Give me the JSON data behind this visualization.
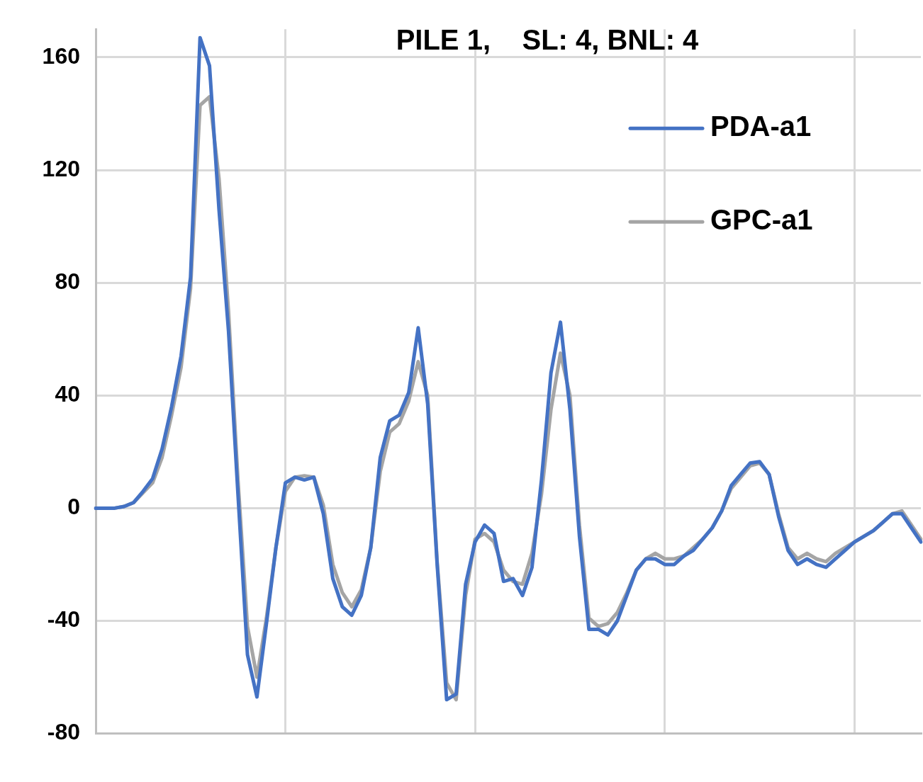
{
  "chart_data": {
    "type": "line",
    "title": "PILE 1,    SL: 4, BNL: 4",
    "categories": [
      null,
      null,
      null,
      null,
      null,
      null,
      null,
      null,
      null,
      null,
      null,
      null,
      null,
      null,
      null,
      null,
      null,
      null,
      null,
      null,
      null,
      null,
      null,
      null,
      null,
      null,
      null,
      null,
      null,
      null,
      null,
      null,
      null,
      null,
      null,
      null,
      null,
      null,
      null,
      null,
      null,
      null,
      null,
      null,
      null,
      null,
      null,
      null,
      null,
      null,
      null,
      null,
      null,
      null,
      null,
      null,
      null,
      null,
      null,
      null,
      null,
      null,
      null,
      null,
      null,
      null,
      null,
      null,
      null,
      null,
      null,
      null,
      null,
      null,
      null,
      null,
      null,
      null,
      null,
      null,
      null,
      null,
      null,
      null,
      null,
      null,
      null,
      null
    ],
    "ylim": [
      -80,
      170
    ],
    "yticks": [
      -80,
      -40,
      0,
      40,
      80,
      120,
      160
    ],
    "grid": true,
    "legend": "top right",
    "marker": "none",
    "series": [
      {
        "name": "PDA-a1",
        "color": "#4472c4",
        "values": [
          0,
          0,
          0,
          0.6,
          2,
          6,
          10.5,
          21,
          36,
          54,
          82,
          167,
          157,
          106,
          63,
          5,
          -52,
          -67,
          -41,
          -14,
          9,
          11,
          10,
          11,
          -2,
          -25,
          -35,
          -38,
          -31,
          -14,
          18,
          31,
          33,
          41,
          64,
          37,
          -20,
          -68,
          -66,
          -27,
          -12,
          -6,
          -9,
          -26,
          -25,
          -31,
          -21,
          10,
          48,
          66,
          35,
          -10,
          -43,
          -43,
          -45,
          -40,
          -31,
          -22,
          -18,
          -18,
          -20,
          -20,
          -17,
          -15,
          -11,
          -7,
          -1,
          8,
          12,
          16,
          16.5,
          12,
          -3,
          -15,
          -20,
          -18,
          -20,
          -21,
          -18,
          -15,
          -12,
          -10,
          -8,
          -5,
          -2,
          -2,
          -7,
          -12
        ]
      },
      {
        "name": "GPC-a1",
        "color": "#a5a5a5",
        "values": [
          0,
          0,
          0,
          0.6,
          2,
          5.5,
          9,
          18,
          33,
          50,
          78,
          143,
          146,
          117,
          70,
          10,
          -42,
          -60,
          -39,
          -14,
          6,
          11,
          11.5,
          11,
          1,
          -20,
          -30,
          -35,
          -29,
          -14,
          13,
          27,
          30,
          38,
          52,
          40,
          -19,
          -62,
          -68,
          -31,
          -11,
          -9,
          -12,
          -22,
          -26,
          -27,
          -16,
          5,
          35,
          55,
          40,
          -6,
          -39,
          -42,
          -41,
          -37,
          -30,
          -22,
          -18,
          -16,
          -18,
          -18,
          -17,
          -14,
          -11,
          -7,
          -1,
          7,
          11,
          15,
          16,
          12,
          -2,
          -14,
          -18,
          -16,
          -18,
          -19,
          -16,
          -14,
          -12,
          -10,
          -8,
          -5,
          -2,
          -1,
          -6,
          -11
        ]
      }
    ]
  }
}
